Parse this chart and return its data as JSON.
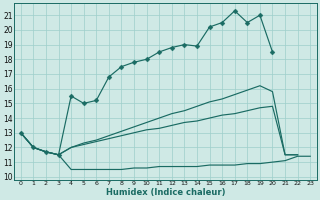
{
  "xlabel": "Humidex (Indice chaleur)",
  "xlim": [
    -0.5,
    23.5
  ],
  "ylim": [
    9.8,
    21.8
  ],
  "yticks": [
    10,
    11,
    12,
    13,
    14,
    15,
    16,
    17,
    18,
    19,
    20,
    21
  ],
  "xticks": [
    0,
    1,
    2,
    3,
    4,
    5,
    6,
    7,
    8,
    9,
    10,
    11,
    12,
    13,
    14,
    15,
    16,
    17,
    18,
    19,
    20,
    21,
    22,
    23
  ],
  "background_color": "#cfe9e5",
  "grid_color": "#9ecfcb",
  "line_color": "#1a6b63",
  "line1_x": [
    0,
    1,
    2,
    3,
    4,
    5,
    6,
    7,
    8,
    9,
    10,
    11,
    12,
    13,
    14,
    15,
    16,
    17,
    18,
    19,
    20,
    21,
    22,
    23
  ],
  "line1_y": [
    13.0,
    12.0,
    11.7,
    11.5,
    15.5,
    15.0,
    15.2,
    16.8,
    17.5,
    17.8,
    18.0,
    18.5,
    18.8,
    19.0,
    18.9,
    20.2,
    20.5,
    21.3,
    20.5,
    21.0,
    18.5,
    null,
    null,
    null
  ],
  "line1_markers": [
    0,
    1,
    2,
    3,
    4,
    5,
    6,
    7,
    8,
    9,
    10,
    11,
    12,
    13,
    14,
    15,
    16,
    17,
    18,
    19,
    20
  ],
  "line2_x": [
    0,
    1,
    2,
    3,
    4,
    5,
    6,
    7,
    8,
    9,
    10,
    11,
    12,
    13,
    14,
    15,
    16,
    17,
    18,
    19,
    20,
    21,
    22,
    23
  ],
  "line2_y": [
    13.0,
    12.0,
    11.7,
    11.5,
    12.0,
    12.3,
    12.5,
    12.8,
    13.1,
    13.4,
    13.7,
    14.0,
    14.3,
    14.5,
    14.8,
    15.1,
    15.3,
    15.6,
    15.9,
    16.2,
    15.8,
    11.5,
    11.5,
    null
  ],
  "line3_x": [
    0,
    1,
    2,
    3,
    4,
    5,
    6,
    7,
    8,
    9,
    10,
    11,
    12,
    13,
    14,
    15,
    16,
    17,
    18,
    19,
    20,
    21,
    22,
    23
  ],
  "line3_y": [
    13.0,
    12.0,
    11.7,
    11.5,
    12.0,
    12.2,
    12.4,
    12.6,
    12.8,
    13.0,
    13.2,
    13.3,
    13.5,
    13.7,
    13.8,
    14.0,
    14.2,
    14.3,
    14.5,
    14.7,
    14.8,
    11.5,
    11.5,
    null
  ],
  "line4_x": [
    0,
    1,
    2,
    3,
    4,
    5,
    6,
    7,
    8,
    9,
    10,
    11,
    12,
    13,
    14,
    15,
    16,
    17,
    18,
    19,
    20,
    21,
    22,
    23
  ],
  "line4_y": [
    13.0,
    12.0,
    11.7,
    11.5,
    10.5,
    10.5,
    10.5,
    10.5,
    10.5,
    10.6,
    10.6,
    10.7,
    10.7,
    10.7,
    10.7,
    10.8,
    10.8,
    10.8,
    10.9,
    10.9,
    11.0,
    11.1,
    11.4,
    11.4
  ]
}
